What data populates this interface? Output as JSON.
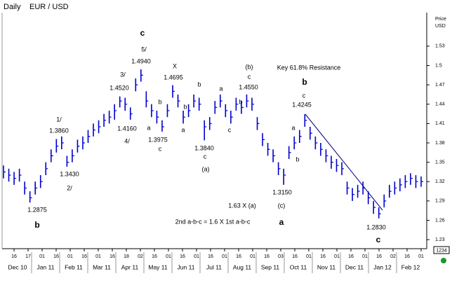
{
  "chart_data": {
    "type": "ohlc",
    "title": "Daily",
    "subtitle": "EUR  /  USD",
    "y_axis_label": [
      "Price",
      "USD"
    ],
    "color": "#0000cc",
    "ylim": [
      1.216,
      1.582
    ],
    "yticks": [
      1.53,
      1.5,
      1.47,
      1.44,
      1.41,
      1.38,
      1.35,
      1.32,
      1.29,
      1.26,
      1.23
    ],
    "months": [
      "Dec 10",
      "Jan 11",
      "Feb 11",
      "Mar 11",
      "Apr 11",
      "May 11",
      "Jun 11",
      "Jul 11",
      "Aug 11",
      "Sep 11",
      "Oct 11",
      "Nov 11",
      "Dec 11",
      "Jan 12",
      "Feb 12"
    ],
    "day_labels": [
      "16",
      "17",
      "01",
      "16",
      "01",
      "16",
      "01",
      "16",
      "18",
      "02",
      "16",
      "01",
      "16",
      "01",
      "16",
      "01",
      "16",
      "01",
      "16",
      "03",
      "16",
      "01",
      "16",
      "01",
      "16",
      "01",
      "16",
      "02",
      "16",
      "01"
    ],
    "close": [
      1.335,
      1.33,
      1.325,
      1.33,
      1.31,
      1.295,
      1.31,
      1.32,
      1.34,
      1.36,
      1.375,
      1.38,
      1.35,
      1.36,
      1.375,
      1.38,
      1.39,
      1.4,
      1.405,
      1.415,
      1.42,
      1.43,
      1.445,
      1.44,
      1.425,
      1.47,
      1.485,
      1.445,
      1.43,
      1.42,
      1.405,
      1.43,
      1.46,
      1.445,
      1.42,
      1.43,
      1.445,
      1.44,
      1.405,
      1.41,
      1.435,
      1.445,
      1.43,
      1.42,
      1.44,
      1.435,
      1.445,
      1.44,
      1.41,
      1.385,
      1.37,
      1.36,
      1.34,
      1.33,
      1.365,
      1.38,
      1.39,
      1.415,
      1.395,
      1.38,
      1.37,
      1.36,
      1.35,
      1.345,
      1.34,
      1.31,
      1.3,
      1.305,
      1.31,
      1.295,
      1.28,
      1.27,
      1.29,
      1.305,
      1.31,
      1.315,
      1.32,
      1.325,
      1.32,
      1.32
    ],
    "high": [
      1.345,
      1.34,
      1.335,
      1.34,
      1.32,
      1.305,
      1.32,
      1.33,
      1.35,
      1.37,
      1.386,
      1.39,
      1.36,
      1.37,
      1.385,
      1.39,
      1.4,
      1.41,
      1.415,
      1.425,
      1.43,
      1.44,
      1.452,
      1.45,
      1.435,
      1.48,
      1.494,
      1.46,
      1.44,
      1.43,
      1.415,
      1.44,
      1.4695,
      1.455,
      1.43,
      1.44,
      1.455,
      1.45,
      1.415,
      1.42,
      1.445,
      1.455,
      1.44,
      1.43,
      1.45,
      1.445,
      1.455,
      1.45,
      1.42,
      1.395,
      1.38,
      1.37,
      1.35,
      1.34,
      1.375,
      1.39,
      1.4,
      1.4245,
      1.405,
      1.39,
      1.38,
      1.37,
      1.36,
      1.355,
      1.35,
      1.32,
      1.31,
      1.315,
      1.32,
      1.305,
      1.29,
      1.28,
      1.3,
      1.315,
      1.32,
      1.325,
      1.33,
      1.333,
      1.33,
      1.328
    ],
    "low": [
      1.325,
      1.32,
      1.315,
      1.32,
      1.3,
      1.2875,
      1.3,
      1.31,
      1.33,
      1.35,
      1.365,
      1.37,
      1.343,
      1.35,
      1.365,
      1.37,
      1.38,
      1.39,
      1.395,
      1.405,
      1.41,
      1.416,
      1.435,
      1.43,
      1.416,
      1.46,
      1.475,
      1.435,
      1.42,
      1.41,
      1.3975,
      1.42,
      1.45,
      1.435,
      1.41,
      1.42,
      1.435,
      1.43,
      1.384,
      1.4,
      1.425,
      1.435,
      1.42,
      1.41,
      1.43,
      1.425,
      1.435,
      1.43,
      1.4,
      1.375,
      1.36,
      1.35,
      1.33,
      1.315,
      1.355,
      1.37,
      1.38,
      1.405,
      1.385,
      1.37,
      1.36,
      1.35,
      1.34,
      1.335,
      1.33,
      1.3,
      1.29,
      1.295,
      1.3,
      1.285,
      1.27,
      1.263,
      1.28,
      1.295,
      1.3,
      1.305,
      1.31,
      1.315,
      1.31,
      1.312
    ],
    "annotations": [
      "c",
      "5/",
      "1.4940",
      "3/",
      "1.4520",
      "X",
      "1.4695",
      "(b)",
      "c",
      "1.4550",
      "Key 61.8% Resistance",
      "b",
      "c",
      "1.4245",
      "1/",
      "1.3860",
      "1.4160",
      "4/",
      "b",
      "a",
      "1.3975",
      "c",
      "b",
      "a",
      "a",
      "b",
      "b",
      "c",
      "a",
      "b",
      "1.3840",
      "c",
      "(a)",
      "1.3430",
      "2/",
      "1.3150",
      "(c)",
      "1.2875",
      "b",
      "1.63  X  (a)",
      "2nd a-b-c  =  1.6 X 1st a-b-c",
      "a",
      "1.2830",
      "c"
    ],
    "corner_box": "1234"
  }
}
